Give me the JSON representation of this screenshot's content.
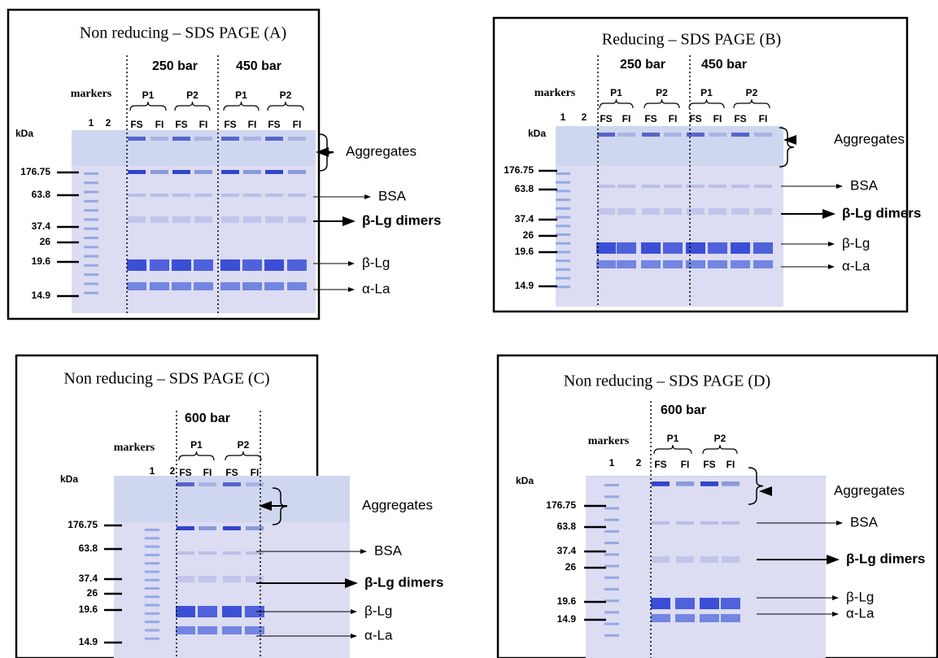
{
  "panels": [
    {
      "title": "Non reducing – SDS PAGE (A)",
      "pressures": [
        "250 bar",
        "450 bar"
      ],
      "markers_label": "markers",
      "kda_label": "kDa",
      "lanes": [
        "1",
        "2"
      ],
      "groups": [
        "P1",
        "P2",
        "P1",
        "P2"
      ],
      "fractions": [
        "FS",
        "FI",
        "FS",
        "FI",
        "FS",
        "FI",
        "FS",
        "FI"
      ],
      "mw": [
        "176.75",
        "63.8",
        "37.4",
        "26",
        "19.6",
        "14.9"
      ],
      "bands": [
        "Aggregates",
        "BSA",
        "β-Lg dimers",
        "β-Lg",
        "α-La"
      ]
    },
    {
      "title": "Reducing – SDS PAGE (B)",
      "pressures": [
        "250 bar",
        "450 bar"
      ],
      "markers_label": "markers",
      "kda_label": "kDa",
      "lanes": [
        "1",
        "2"
      ],
      "groups": [
        "P1",
        "P2",
        "P1",
        "P2"
      ],
      "fractions": [
        "FS",
        "FI",
        "FS",
        "FI",
        "FS",
        "FI",
        "FS",
        "FI"
      ],
      "mw": [
        "176.75",
        "63.8",
        "37.4",
        "26",
        "19.6",
        "14.9"
      ],
      "bands": [
        "Aggregates",
        "BSA",
        "β-Lg dimers",
        "β-Lg",
        "α-La"
      ]
    },
    {
      "title": "Non reducing – SDS PAGE (C)",
      "pressures": [
        "600 bar"
      ],
      "markers_label": "markers",
      "kda_label": "kDa",
      "lanes": [
        "1",
        "2"
      ],
      "groups": [
        "P1",
        "P2"
      ],
      "fractions": [
        "FS",
        "FI",
        "FS",
        "FI"
      ],
      "mw": [
        "176.75",
        "63.8",
        "37.4",
        "26",
        "19.6",
        "14.9"
      ],
      "bands": [
        "Aggregates",
        "BSA",
        "β-Lg dimers",
        "β-Lg",
        "α-La"
      ]
    },
    {
      "title": "Non reducing – SDS PAGE (D)",
      "pressures": [
        "600 bar"
      ],
      "markers_label": "markers",
      "kda_label": "kDa",
      "lanes": [
        "1",
        "2"
      ],
      "groups": [
        "P1",
        "P2"
      ],
      "fractions": [
        "FS",
        "FI",
        "FS",
        "FI"
      ],
      "mw": [
        "176.75",
        "63.8",
        "37.4",
        "26",
        "19.6",
        "14.9"
      ],
      "bands": [
        "Aggregates",
        "BSA",
        "β-Lg dimers",
        "β-Lg",
        "α-La"
      ]
    }
  ]
}
